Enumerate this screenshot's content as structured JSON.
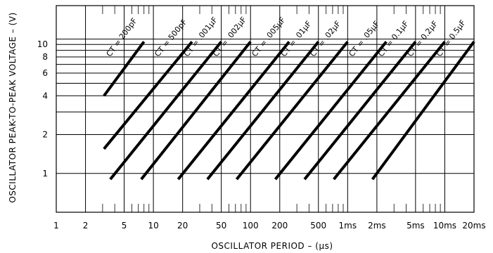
{
  "chart_data": {
    "type": "line",
    "title": "",
    "xlabel": "OSCILLATOR PERIOD – (μs)",
    "ylabel": "OSCILLATOR PEAK-TO-PEAK VOLTAGE – (V)",
    "x_scale": "log",
    "y_scale": "log",
    "xlim": [
      1,
      20000
    ],
    "ylim": [
      0.5,
      20
    ],
    "grid": true,
    "x_ticks": [
      {
        "value": 1,
        "label": "1"
      },
      {
        "value": 2,
        "label": "2"
      },
      {
        "value": 5,
        "label": "5"
      },
      {
        "value": 10,
        "label": "10"
      },
      {
        "value": 20,
        "label": "20"
      },
      {
        "value": 50,
        "label": "50"
      },
      {
        "value": 100,
        "label": "100"
      },
      {
        "value": 200,
        "label": "200"
      },
      {
        "value": 500,
        "label": "500"
      },
      {
        "value": 1000,
        "label": "1ms"
      },
      {
        "value": 2000,
        "label": "2ms"
      },
      {
        "value": 5000,
        "label": "5ms"
      },
      {
        "value": 10000,
        "label": "10ms"
      },
      {
        "value": 20000,
        "label": "20ms"
      }
    ],
    "y_ticks": [
      {
        "value": 1,
        "label": "1"
      },
      {
        "value": 2,
        "label": "2"
      },
      {
        "value": 4,
        "label": "4"
      },
      {
        "value": 6,
        "label": "6"
      },
      {
        "value": 8,
        "label": "8"
      },
      {
        "value": 10,
        "label": "10"
      }
    ],
    "y_extra_gridlines": [
      3,
      5,
      7,
      9,
      11
    ],
    "series": [
      {
        "name": "CT = 200pF",
        "x": [
          3.1,
          8.0
        ],
        "y": [
          4,
          10.5
        ]
      },
      {
        "name": "CT = 500pF",
        "x": [
          3.1,
          25
        ],
        "y": [
          1.55,
          10.5
        ]
      },
      {
        "name": "CT = .001μF",
        "x": [
          3.6,
          50
        ],
        "y": [
          0.9,
          10.5
        ]
      },
      {
        "name": "CT = .002μF",
        "x": [
          7.5,
          100
        ],
        "y": [
          0.9,
          10.5
        ]
      },
      {
        "name": "CT = .005μF",
        "x": [
          18,
          250
        ],
        "y": [
          0.9,
          10.5
        ]
      },
      {
        "name": "CT = .01μF",
        "x": [
          36,
          500
        ],
        "y": [
          0.9,
          10.5
        ]
      },
      {
        "name": "CT = .02μF",
        "x": [
          72,
          1000
        ],
        "y": [
          0.9,
          10.5
        ]
      },
      {
        "name": "CT = .05μF",
        "x": [
          180,
          2500
        ],
        "y": [
          0.9,
          10.5
        ]
      },
      {
        "name": "CT = 0.1μF",
        "x": [
          360,
          5000
        ],
        "y": [
          0.9,
          10.5
        ]
      },
      {
        "name": "CT = 0.2μF",
        "x": [
          720,
          10000
        ],
        "y": [
          0.9,
          10.5
        ]
      },
      {
        "name": "CT = 0.5μF",
        "x": [
          1800,
          20000
        ],
        "y": [
          0.9,
          10.5
        ]
      }
    ]
  }
}
